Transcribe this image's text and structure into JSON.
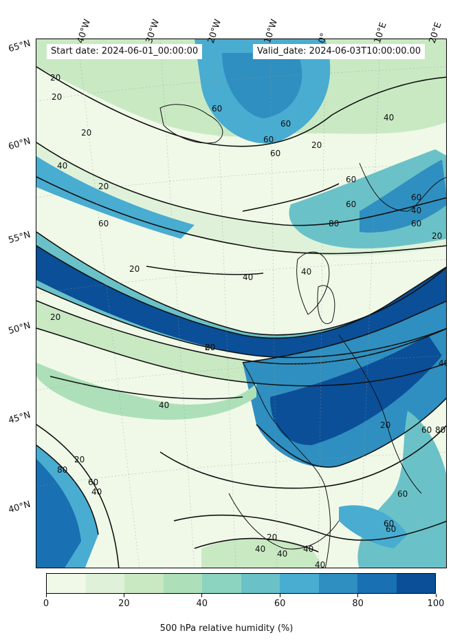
{
  "header": {
    "start_date": "Start date: 2024-06-01_00:00:00",
    "valid_date": "Valid_date: 2024-06-03T10:00:00.00"
  },
  "longitude_labels": [
    "40°W",
    "30°W",
    "20°W",
    "10°W",
    "0°",
    "10°E",
    "20°E"
  ],
  "latitude_labels": [
    "65°N",
    "60°N",
    "55°N",
    "50°N",
    "45°N",
    "40°N"
  ],
  "contour_labels": [
    "20",
    "20",
    "20",
    "60",
    "60",
    "60",
    "60",
    "40",
    "20",
    "40",
    "60",
    "60",
    "20",
    "60",
    "60",
    "80",
    "60",
    "40",
    "20",
    "40",
    "20",
    "20",
    "80",
    "20",
    "40",
    "20",
    "60",
    "40",
    "40",
    "60",
    "80",
    "60",
    "20",
    "80",
    "40",
    "60",
    "60",
    "20",
    "40",
    "40",
    "40",
    "40"
  ],
  "colorbar": {
    "levels": [
      0,
      10,
      20,
      30,
      40,
      50,
      60,
      70,
      80,
      90,
      100
    ],
    "colors": [
      "#f0f9e8",
      "#dff2d9",
      "#c9e9c3",
      "#ade0b9",
      "#8cd3c0",
      "#6ac2c8",
      "#49acd1",
      "#2f8fc0",
      "#1970b2",
      "#0a4f98"
    ],
    "tick_values": [
      "0",
      "20",
      "40",
      "60",
      "80",
      "100"
    ],
    "label": "500 hPa relative humidity (%)"
  }
}
